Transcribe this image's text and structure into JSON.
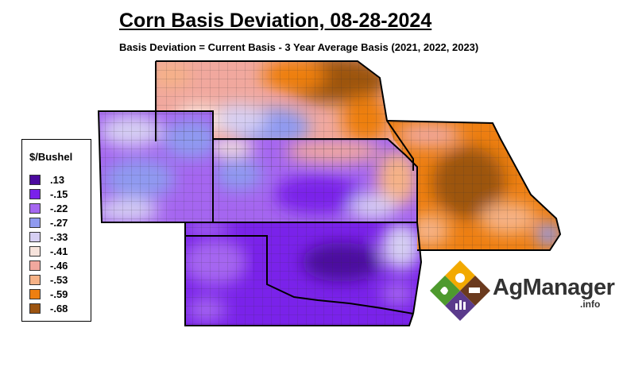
{
  "title": "Corn Basis Deviation, 08-28-2024",
  "subtitle": "Basis Deviation = Current Basis - 3 Year Average Basis (2021, 2022, 2023)",
  "legend": {
    "title": "$/Bushel",
    "items": [
      {
        "label": ".13",
        "color": "#4b0a9e"
      },
      {
        "label": "-.15",
        "color": "#7a22ea"
      },
      {
        "label": "-.22",
        "color": "#a566f0"
      },
      {
        "label": "-.27",
        "color": "#8f9af0"
      },
      {
        "label": "-.33",
        "color": "#d6cff3"
      },
      {
        "label": "-.41",
        "color": "#f6e3dc"
      },
      {
        "label": "-.46",
        "color": "#f1a89e"
      },
      {
        "label": "-.53",
        "color": "#f6b286"
      },
      {
        "label": "-.59",
        "color": "#ee7f11"
      },
      {
        "label": "-.68",
        "color": "#9c5410"
      }
    ]
  },
  "logo": {
    "name": "AgManager",
    "suffix": ".info"
  }
}
